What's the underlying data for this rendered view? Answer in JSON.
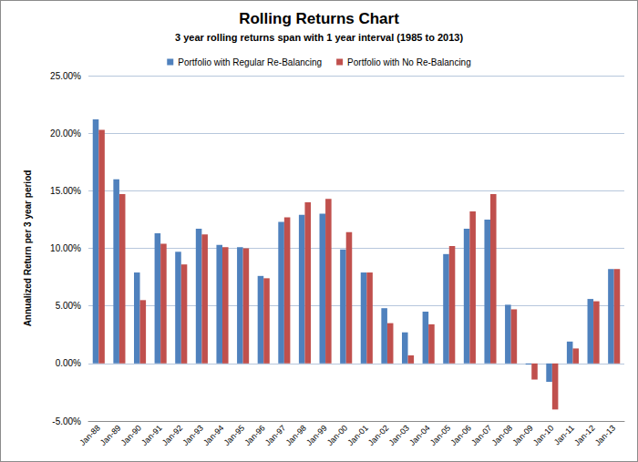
{
  "chart_data": {
    "type": "bar",
    "title": "Rolling Returns Chart",
    "subtitle": "3 year rolling returns span with 1 year interval (1985 to 2013)",
    "y_label": "Annualized Return per 3 year period",
    "categories": [
      "Jan-88",
      "Jan-89",
      "Jan-90",
      "Jan-91",
      "Jan-92",
      "Jan-93",
      "Jan-94",
      "Jan-95",
      "Jan-96",
      "Jan-97",
      "Jan-98",
      "Jan-99",
      "Jan-00",
      "Jan-01",
      "Jan-02",
      "Jan-03",
      "Jan-04",
      "Jan-05",
      "Jan-06",
      "Jan-07",
      "Jan-08",
      "Jan-09",
      "Jan-10",
      "Jan-11",
      "Jan-12",
      "Jan-13"
    ],
    "series": [
      {
        "name": "Portfolio with Regular Re-Balancing",
        "color": "#4f81bd",
        "values": [
          21.2,
          16.0,
          7.9,
          11.3,
          9.7,
          11.7,
          10.3,
          10.1,
          7.6,
          12.3,
          12.9,
          13.0,
          9.9,
          7.9,
          4.8,
          2.7,
          4.5,
          9.5,
          11.7,
          12.5,
          5.1,
          -0.1,
          -1.6,
          1.9,
          5.6,
          8.2
        ]
      },
      {
        "name": "Portfolio with No Re-Balancing",
        "color": "#c0504d",
        "values": [
          20.3,
          14.7,
          5.5,
          10.4,
          8.6,
          11.2,
          10.1,
          10.0,
          7.4,
          12.7,
          14.0,
          14.3,
          11.4,
          7.9,
          3.5,
          0.7,
          3.4,
          10.2,
          13.2,
          14.7,
          4.7,
          -1.4,
          -4.0,
          1.3,
          5.4,
          8.2
        ]
      }
    ],
    "ylim": [
      -5,
      25
    ],
    "yticks": [
      {
        "value": -5,
        "label": "-5.00%"
      },
      {
        "value": 0,
        "label": "0.00%"
      },
      {
        "value": 5,
        "label": "5.00%"
      },
      {
        "value": 10,
        "label": "10.00%"
      },
      {
        "value": 15,
        "label": "15.00%"
      },
      {
        "value": 20,
        "label": "20.00%"
      },
      {
        "value": 25,
        "label": "25.00%"
      }
    ],
    "grid": true,
    "legend": "top"
  }
}
